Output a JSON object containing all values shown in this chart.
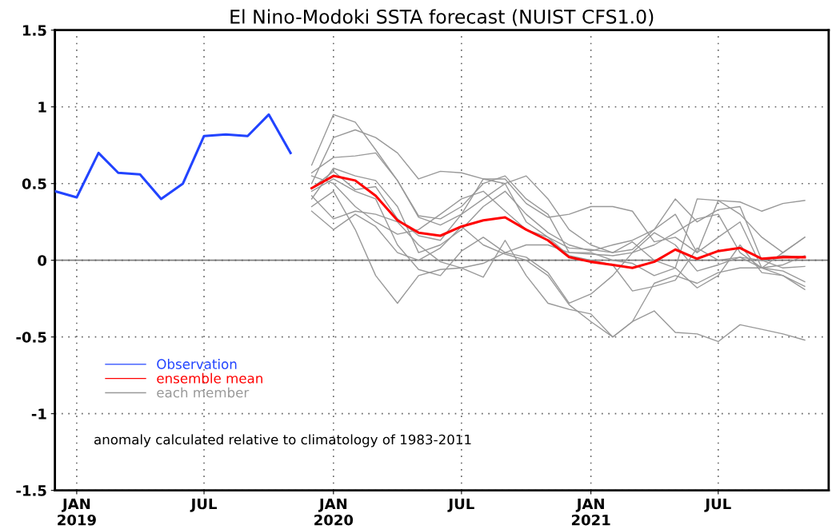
{
  "chart_data": {
    "type": "line",
    "title": "El Nino-Modoki SSTA forecast (NUIST CFS1.0)",
    "annotations": [
      "anomaly calculated relative to climatology of 1983-2011"
    ],
    "xlim": [
      "2018-12-01",
      "2021-12-05"
    ],
    "xticks": [
      {
        "value": "2019-01-01",
        "label": "JAN\n2019"
      },
      {
        "value": "2019-07-01",
        "label": "JUL"
      },
      {
        "value": "2020-01-01",
        "label": "JAN\n2020"
      },
      {
        "value": "2020-07-01",
        "label": "JUL"
      },
      {
        "value": "2021-01-01",
        "label": "JAN\n2021"
      },
      {
        "value": "2021-07-01",
        "label": "JUL"
      }
    ],
    "ylim": [
      -1.5,
      1.5
    ],
    "yticks": [
      -1.5,
      -1,
      -0.5,
      0,
      0.5,
      1,
      1.5
    ],
    "grid": true,
    "legend": "bottom left",
    "line_style": "solid",
    "marker": "none",
    "ref_lines": [
      {
        "axis": "y",
        "value": 0,
        "color": "#808080"
      }
    ],
    "x": [
      "2019-12-01",
      "2020-01-01",
      "2020-02-01",
      "2020-03-01",
      "2020-04-01",
      "2020-05-01",
      "2020-06-01",
      "2020-07-01",
      "2020-08-01",
      "2020-09-01",
      "2020-10-01",
      "2020-11-01",
      "2020-12-01",
      "2021-01-01",
      "2021-02-01",
      "2021-03-01",
      "2021-04-01",
      "2021-05-01",
      "2021-06-01",
      "2021-07-01",
      "2021-08-01",
      "2021-09-01",
      "2021-10-01",
      "2021-11-01"
    ],
    "series": [
      {
        "name": "each member",
        "color": "#999999",
        "values": [
          0.62,
          0.95,
          0.9,
          0.72,
          0.52,
          0.29,
          0.27,
          0.35,
          0.5,
          0.55,
          0.4,
          0.3,
          0.05,
          0.05,
          0.0,
          -0.02,
          -0.1,
          -0.05,
          0.4,
          0.39,
          0.38,
          0.32,
          0.37,
          0.39
        ]
      },
      {
        "color": "#999999",
        "values": [
          0.5,
          0.8,
          0.85,
          0.8,
          0.7,
          0.53,
          0.58,
          0.57,
          0.53,
          0.53,
          0.37,
          0.28,
          0.3,
          0.35,
          0.35,
          0.32,
          0.12,
          0.15,
          0.05,
          0.39,
          0.3,
          0.15,
          0.05,
          0.15
        ]
      },
      {
        "color": "#999999",
        "values": [
          0.57,
          0.67,
          0.68,
          0.7,
          0.52,
          0.28,
          0.23,
          0.3,
          0.4,
          0.5,
          0.55,
          0.4,
          0.2,
          0.1,
          0.05,
          0.07,
          0.2,
          0.4,
          0.25,
          0.33,
          0.35,
          0.0,
          -0.05,
          -0.04
        ]
      },
      {
        "color": "#999999",
        "values": [
          0.4,
          0.6,
          0.55,
          0.52,
          0.35,
          0.05,
          0.1,
          0.2,
          0.35,
          0.45,
          0.3,
          0.18,
          0.1,
          0.06,
          0.1,
          0.13,
          0.2,
          0.3,
          0.05,
          0.15,
          0.25,
          -0.05,
          -0.07,
          -0.14
        ]
      },
      {
        "color": "#999999",
        "values": [
          0.45,
          0.53,
          0.45,
          0.4,
          0.1,
          -0.06,
          -0.1,
          0.06,
          0.15,
          0.05,
          0.02,
          -0.08,
          -0.28,
          -0.22,
          -0.1,
          0.05,
          0.1,
          0.18,
          0.27,
          0.3,
          0.05,
          -0.05,
          0.05,
          0.15
        ]
      },
      {
        "color": "#999999",
        "values": [
          0.35,
          0.45,
          0.2,
          -0.1,
          -0.28,
          -0.1,
          -0.06,
          -0.05,
          -0.11,
          0.13,
          -0.1,
          -0.28,
          -0.32,
          -0.35,
          -0.5,
          -0.4,
          -0.33,
          -0.47,
          -0.48,
          -0.53,
          -0.42,
          -0.45,
          -0.48,
          -0.52
        ]
      },
      {
        "color": "#999999",
        "values": [
          0.42,
          0.27,
          0.32,
          0.3,
          0.25,
          0.1,
          -0.01,
          -0.05,
          -0.02,
          0.05,
          0.1,
          0.1,
          0.05,
          0.04,
          0.03,
          0.05,
          0.18,
          0.1,
          -0.07,
          -0.03,
          0.02,
          -0.05,
          -0.1,
          -0.17
        ]
      },
      {
        "color": "#999999",
        "values": [
          0.32,
          0.2,
          0.3,
          0.22,
          0.05,
          0.0,
          0.08,
          0.22,
          0.1,
          0.04,
          0.0,
          -0.1,
          -0.29,
          -0.4,
          -0.5,
          -0.4,
          -0.15,
          -0.1,
          -0.15,
          -0.08,
          -0.05,
          -0.05,
          -0.03,
          0.03
        ]
      },
      {
        "color": "#999999",
        "values": [
          0.55,
          0.5,
          0.35,
          0.25,
          0.17,
          0.2,
          0.3,
          0.4,
          0.45,
          0.32,
          0.2,
          0.15,
          0.08,
          0.07,
          0.05,
          0.12,
          0.0,
          -0.05,
          -0.18,
          -0.1,
          0.1,
          -0.08,
          -0.1,
          -0.19
        ]
      },
      {
        "color": "#999999",
        "values": [
          0.47,
          0.58,
          0.46,
          0.48,
          0.27,
          0.16,
          0.13,
          0.3,
          0.53,
          0.5,
          0.25,
          0.15,
          0.03,
          0.0,
          -0.03,
          -0.2,
          -0.17,
          -0.13,
          0.08,
          0.0,
          0.02,
          0.0,
          0.03,
          0.02
        ]
      },
      {
        "name": "ensemble mean",
        "color": "#ff0000",
        "values": [
          0.47,
          0.55,
          0.52,
          0.42,
          0.26,
          0.18,
          0.16,
          0.22,
          0.26,
          0.28,
          0.2,
          0.13,
          0.02,
          -0.01,
          -0.03,
          -0.05,
          -0.01,
          0.07,
          0.01,
          0.06,
          0.08,
          0.01,
          0.02,
          0.02
        ]
      },
      {
        "name": "Observation",
        "color": "#2244ff",
        "x": [
          "2018-12-01",
          "2019-01-01",
          "2019-02-01",
          "2019-03-01",
          "2019-04-01",
          "2019-05-01",
          "2019-06-01",
          "2019-07-01",
          "2019-08-01",
          "2019-09-01",
          "2019-10-01",
          "2019-11-01"
        ],
        "values": [
          0.45,
          0.41,
          0.7,
          0.57,
          0.56,
          0.4,
          0.5,
          0.81,
          0.82,
          0.81,
          0.95,
          0.7
        ]
      }
    ]
  }
}
